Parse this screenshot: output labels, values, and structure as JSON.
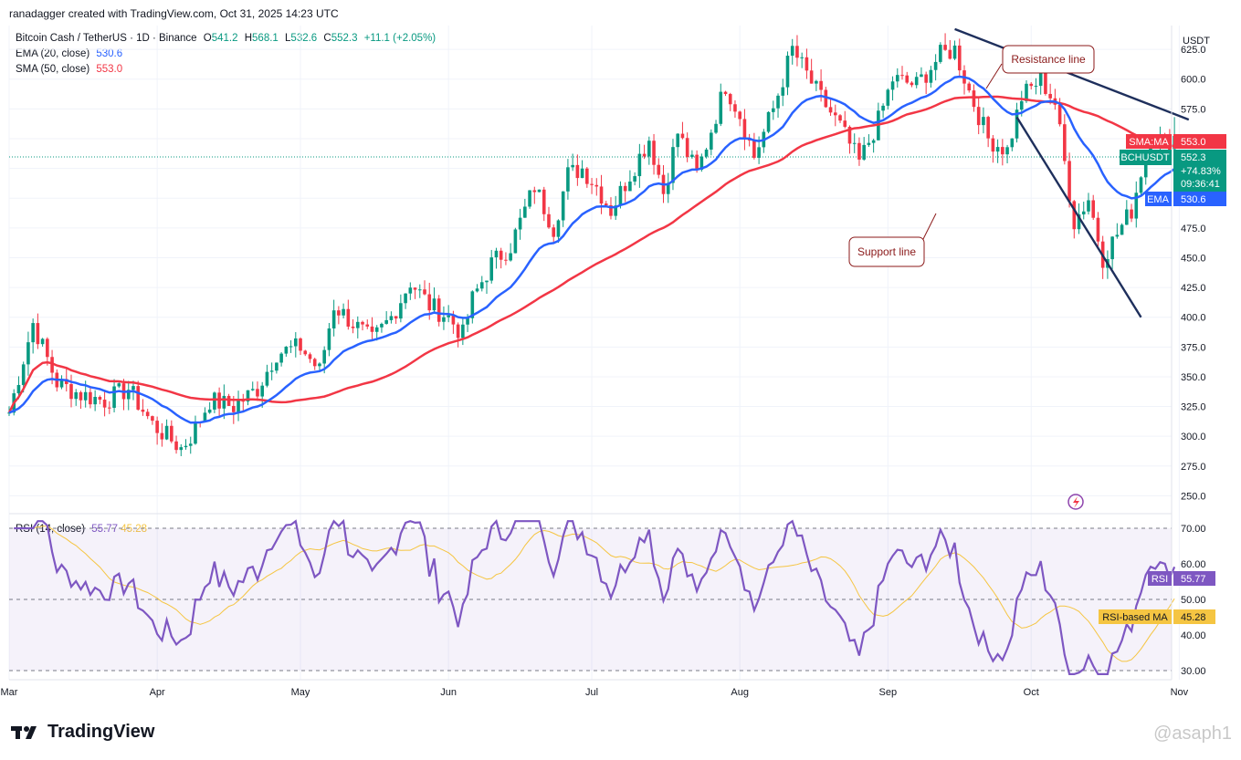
{
  "header": {
    "attribution": "ranadagger created with TradingView.com, Oct 31, 2025 14:23 UTC"
  },
  "legend": {
    "symbol": "Bitcoin Cash / TetherUS · 1D · Binance",
    "o_label": "O",
    "o": "541.2",
    "h_label": "H",
    "h": "568.1",
    "l_label": "L",
    "l": "532.6",
    "c_label": "C",
    "c": "552.3",
    "change": "+11.1 (+2.05%)",
    "ema_label": "EMA (20, close)",
    "ema_val": "530.6",
    "sma_label": "SMA (50, close)",
    "sma_val": "553.0",
    "rsi_label": "RSI (14, close)",
    "rsi_val": "55.77",
    "rsi_ma_val": "45.28"
  },
  "price_axis": {
    "currency": "USDT"
  },
  "price_tags": {
    "sma_tag": "SMA:MA",
    "sma_val": "553.0",
    "symbol_tag": "BCHUSDT",
    "last": "552.3",
    "pct": "+74.83%",
    "countdown": "09:36:41",
    "ema_tag": "EMA",
    "ema_val": "530.6"
  },
  "rsi_tags": {
    "rsi_tag": "RSI",
    "rsi_val": "55.77",
    "ma_tag": "RSI-based MA",
    "ma_val": "45.28"
  },
  "annotations": {
    "resistance": "Resistance line",
    "support": "Support line"
  },
  "branding": {
    "logo": "TradingView",
    "watermark": "@asaph1"
  },
  "colors": {
    "up": "#089981",
    "down": "#f23645",
    "ema": "#2962ff",
    "sma": "#f23645",
    "rsi": "#7e57c2",
    "rsi_ma": "#f5c542",
    "trend": "#1e2f5c",
    "callout_border": "#8b1a1a"
  },
  "chart_data": [
    {
      "type": "candlestick",
      "title": "Bitcoin Cash / TetherUS · 1D · Binance",
      "ylabel": "USDT",
      "ylim": [
        235,
        645
      ],
      "y_ticks": [
        250,
        275,
        300,
        325,
        350,
        375,
        400,
        425,
        450,
        475,
        500,
        525,
        550,
        575,
        600,
        625
      ],
      "x_labels": [
        "Mar",
        "Apr",
        "May",
        "Jun",
        "Jul",
        "Aug",
        "Sep",
        "Oct",
        "Nov"
      ],
      "x_label_days": [
        0,
        31,
        61,
        92,
        122,
        153,
        184,
        214,
        245
      ],
      "close_anchors": [
        [
          0,
          320
        ],
        [
          5,
          395
        ],
        [
          10,
          345
        ],
        [
          15,
          335
        ],
        [
          20,
          330
        ],
        [
          25,
          340
        ],
        [
          30,
          310
        ],
        [
          36,
          290
        ],
        [
          38,
          300
        ],
        [
          42,
          330
        ],
        [
          47,
          325
        ],
        [
          52,
          340
        ],
        [
          56,
          370
        ],
        [
          61,
          375
        ],
        [
          65,
          355
        ],
        [
          68,
          410
        ],
        [
          72,
          395
        ],
        [
          76,
          380
        ],
        [
          80,
          400
        ],
        [
          84,
          430
        ],
        [
          88,
          410
        ],
        [
          92,
          400
        ],
        [
          95,
          385
        ],
        [
          97,
          415
        ],
        [
          101,
          445
        ],
        [
          105,
          460
        ],
        [
          110,
          510
        ],
        [
          114,
          475
        ],
        [
          117,
          520
        ],
        [
          120,
          525
        ],
        [
          123,
          510
        ],
        [
          126,
          490
        ],
        [
          130,
          520
        ],
        [
          134,
          550
        ],
        [
          137,
          505
        ],
        [
          140,
          555
        ],
        [
          144,
          520
        ],
        [
          150,
          595
        ],
        [
          153,
          570
        ],
        [
          156,
          535
        ],
        [
          160,
          575
        ],
        [
          164,
          625
        ],
        [
          169,
          590
        ],
        [
          174,
          560
        ],
        [
          178,
          530
        ],
        [
          182,
          565
        ],
        [
          185,
          600
        ],
        [
          190,
          595
        ],
        [
          195,
          620
        ],
        [
          198,
          625
        ],
        [
          201,
          590
        ],
        [
          205,
          550
        ],
        [
          209,
          540
        ],
        [
          212,
          585
        ],
        [
          216,
          600
        ],
        [
          219,
          580
        ],
        [
          223,
          480
        ],
        [
          226,
          500
        ],
        [
          229,
          450
        ],
        [
          232,
          470
        ],
        [
          235,
          490
        ],
        [
          239,
          555
        ],
        [
          242,
          545
        ],
        [
          244,
          552.3
        ]
      ],
      "open": 541.2,
      "high": 568.1,
      "low": 532.6,
      "close": 552.3,
      "change_pct": 2.05,
      "last_price": 552.3,
      "series": [
        {
          "name": "EMA (20, close)",
          "last": 530.6
        },
        {
          "name": "SMA (50, close)",
          "last": 553.0
        }
      ],
      "trendlines": [
        {
          "name": "Resistance line",
          "from": [
            198,
            642
          ],
          "to": [
            247,
            566
          ]
        },
        {
          "name": "Support line",
          "from": [
            211,
            568
          ],
          "to": [
            237,
            400
          ]
        }
      ]
    },
    {
      "type": "line",
      "title": "RSI (14, close)",
      "ylim": [
        27,
        73
      ],
      "y_ticks": [
        30,
        40,
        50,
        60,
        70
      ],
      "levels": [
        30,
        50,
        70
      ],
      "series": [
        {
          "name": "RSI",
          "last": 55.77
        },
        {
          "name": "RSI-based MA",
          "last": 45.28
        }
      ]
    }
  ]
}
